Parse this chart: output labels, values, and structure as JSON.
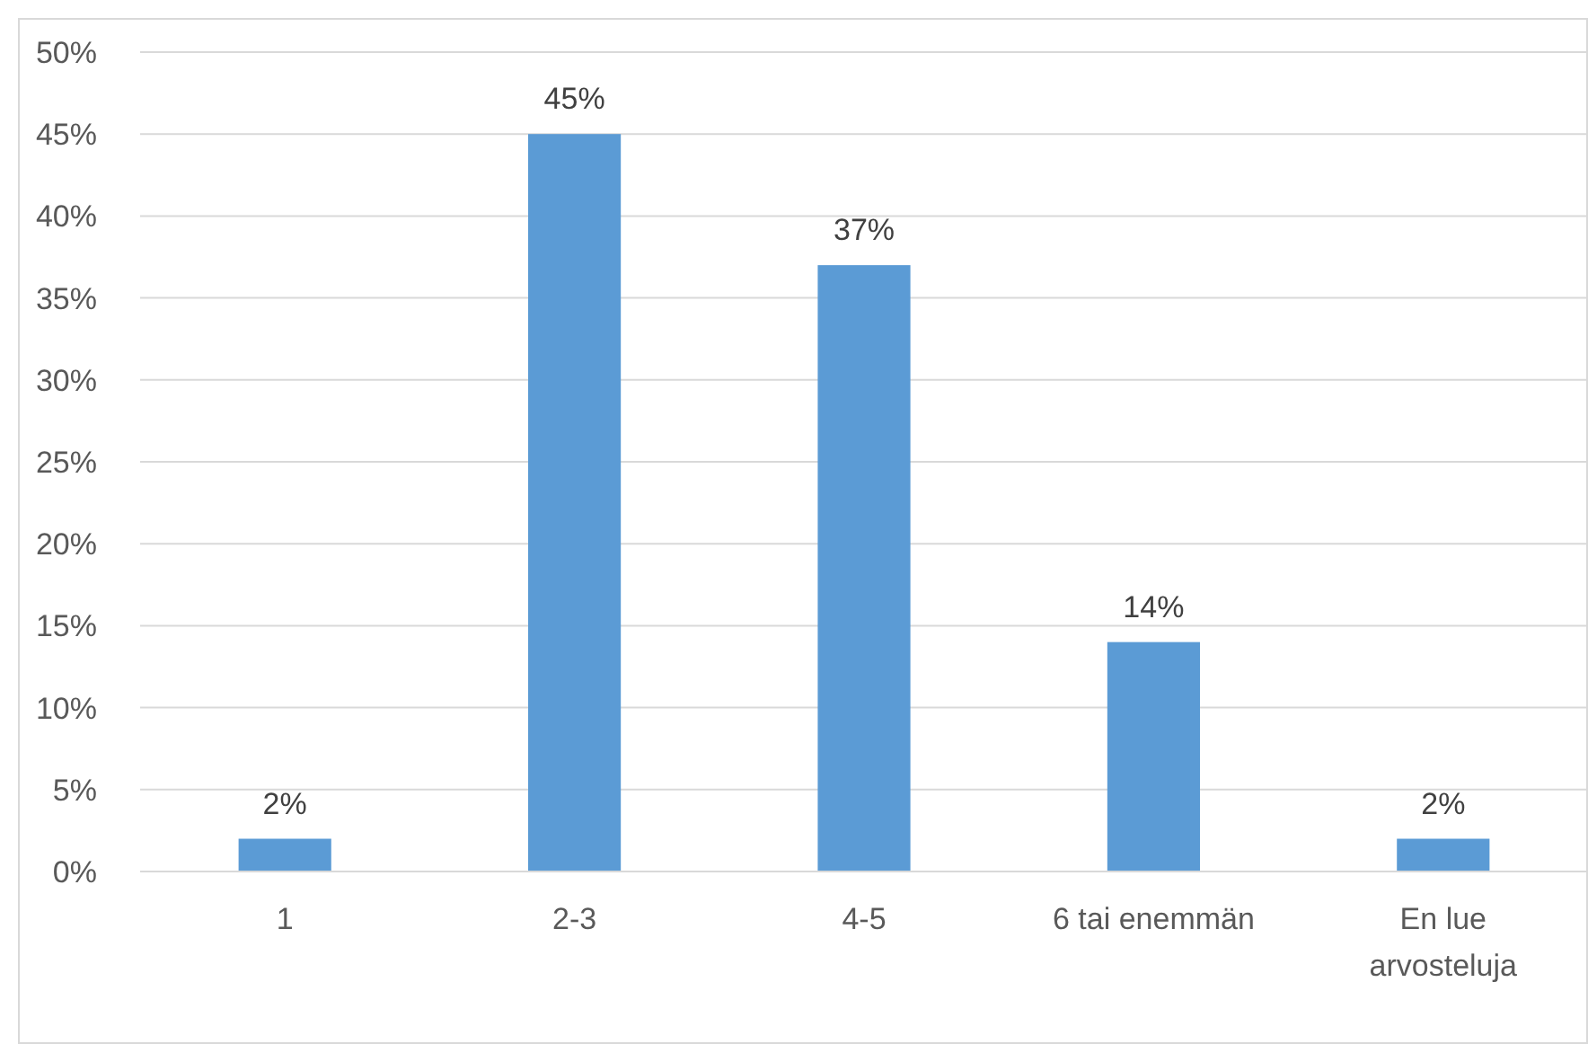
{
  "chart_data": {
    "type": "bar",
    "categories": [
      "1",
      "2-3",
      "4-5",
      "6 tai enemmän",
      "En lue arvosteluja"
    ],
    "values": [
      2,
      45,
      37,
      14,
      2
    ],
    "value_labels": [
      "2%",
      "45%",
      "37%",
      "14%",
      "2%"
    ],
    "color": "#5b9bd5",
    "ylim": [
      0,
      50
    ],
    "yticks": [
      {
        "value": 0,
        "label": "0%"
      },
      {
        "value": 5,
        "label": "5%"
      },
      {
        "value": 10,
        "label": "10%"
      },
      {
        "value": 15,
        "label": "15%"
      },
      {
        "value": 20,
        "label": "20%"
      },
      {
        "value": 25,
        "label": "25%"
      },
      {
        "value": 30,
        "label": "30%"
      },
      {
        "value": 35,
        "label": "35%"
      },
      {
        "value": 40,
        "label": "40%"
      },
      {
        "value": 45,
        "label": "45%"
      },
      {
        "value": 50,
        "label": "50%"
      }
    ],
    "grid": "y"
  }
}
